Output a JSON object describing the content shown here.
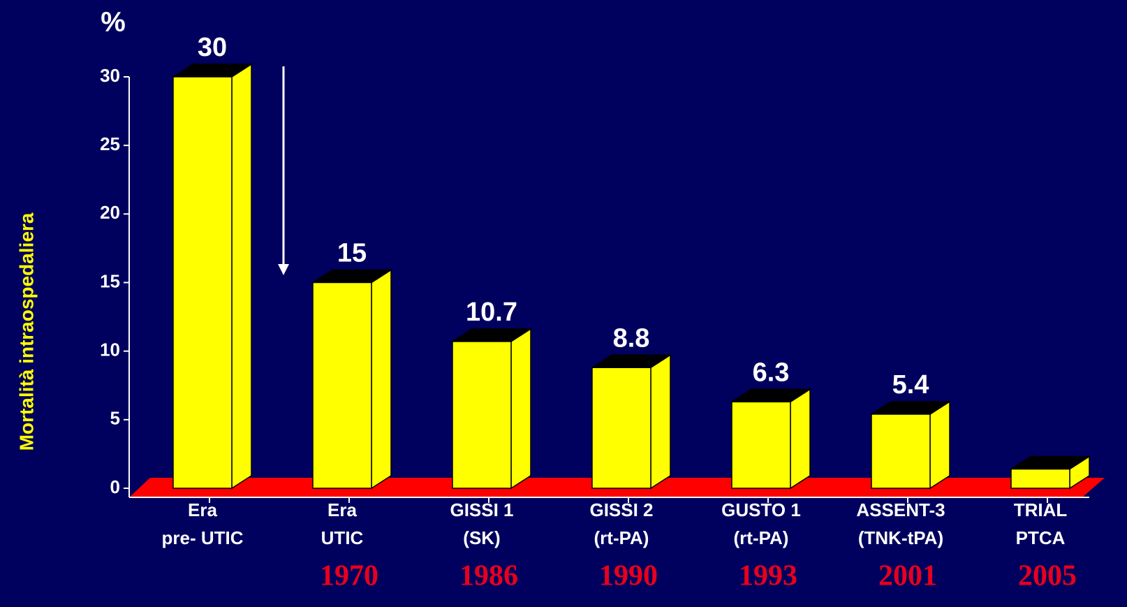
{
  "chart_data": {
    "type": "bar3d",
    "unit_label": "%",
    "y_label": "Mortalità intraospedaliera",
    "categories": [
      [
        "Era",
        "pre- UTIC"
      ],
      [
        "Era",
        "UTIC"
      ],
      [
        "GISSI 1",
        "(SK)"
      ],
      [
        "GISSI 2",
        "(rt-PA)"
      ],
      [
        "GUSTO 1",
        "(rt-PA)"
      ],
      [
        "ASSENT-3",
        "(TNK-tPA)"
      ],
      [
        "TRIAL",
        "PTCA"
      ]
    ],
    "years": [
      null,
      "1970",
      "1986",
      "1990",
      "1993",
      "2001",
      "2005"
    ],
    "values": [
      30,
      15,
      10.7,
      8.8,
      6.3,
      5.4,
      1.4
    ],
    "value_labels": [
      "30",
      "15",
      "10.7",
      "8.8",
      "6.3",
      "5.4",
      null
    ],
    "color": "#ffff00",
    "ylim": [
      0,
      30
    ],
    "yticks": [
      0,
      5,
      10,
      15,
      20,
      25,
      30
    ]
  }
}
